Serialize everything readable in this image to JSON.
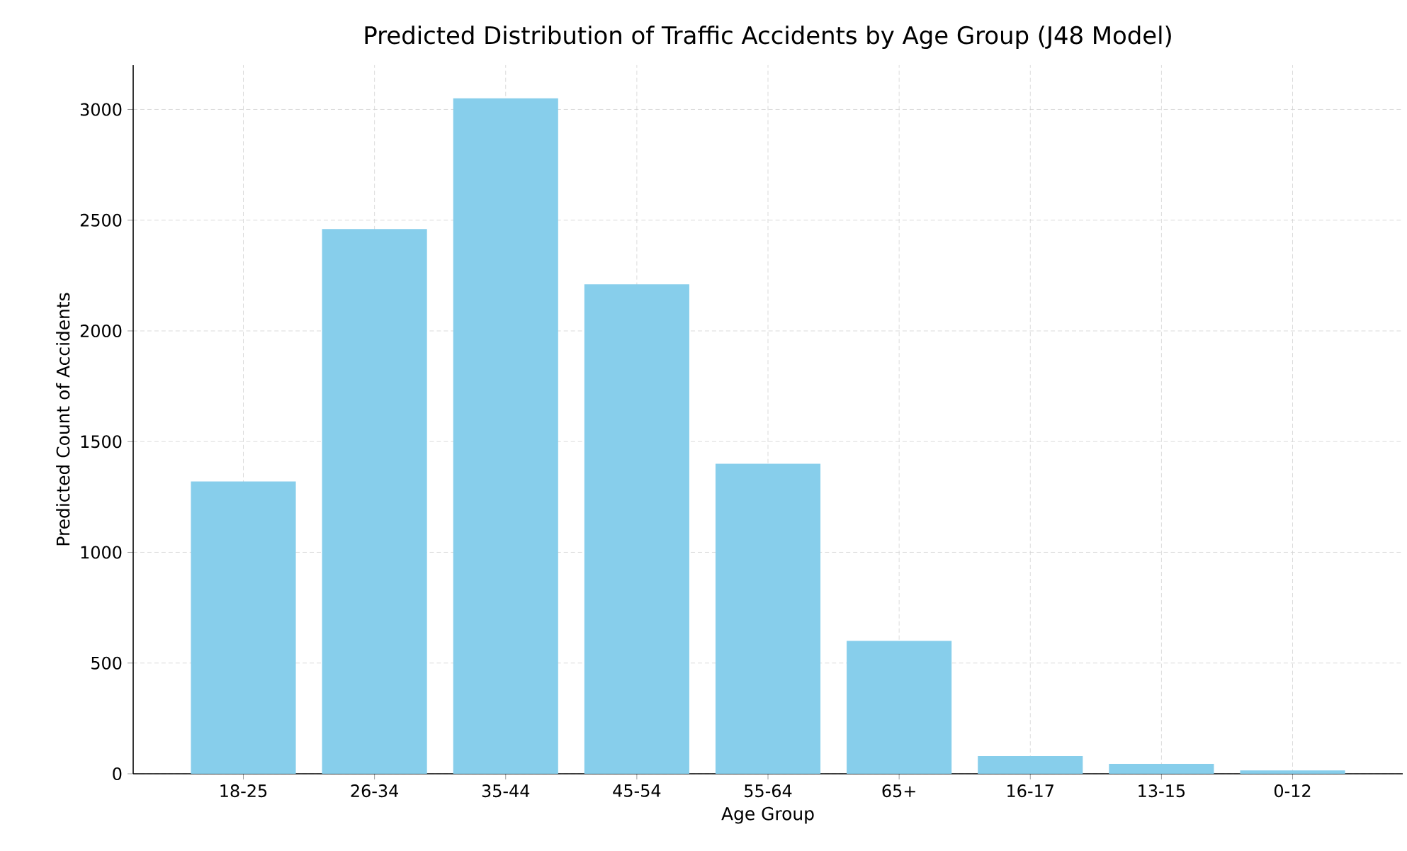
{
  "chart_data": {
    "type": "bar",
    "title": "Predicted Distribution of Traffic Accidents by Age Group (J48 Model)",
    "xlabel": "Age Group",
    "ylabel": "Predicted Count of Accidents",
    "categories": [
      "18-25",
      "26-34",
      "35-44",
      "45-54",
      "55-64",
      "65+",
      "16-17",
      "13-15",
      "0-12"
    ],
    "values": [
      1320,
      2460,
      3050,
      2210,
      1400,
      600,
      80,
      45,
      15
    ],
    "color": "#87ceeb",
    "ylim": [
      0,
      3200
    ],
    "yticks": [
      0,
      500,
      1000,
      1500,
      2000,
      2500,
      3000
    ],
    "grid": true
  }
}
